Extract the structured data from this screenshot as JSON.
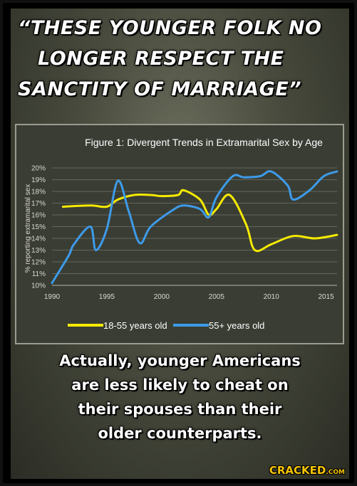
{
  "headline": {
    "lines": [
      "“THESE YOUNGER FOLK NO",
      "LONGER RESPECT THE",
      "SANCTITY OF MARRIAGE”"
    ]
  },
  "caption": {
    "lines": [
      "Actually, younger Americans",
      "are less likely to cheat on",
      "their spouses than their",
      "older counterparts."
    ]
  },
  "logo": {
    "main": "CRACKED",
    "suffix": ".COM"
  },
  "colors": {
    "young": "#f5ea00",
    "old": "#3d9be9"
  },
  "chart_data": {
    "type": "line",
    "title": "Figure 1: Divergent Trends in Extramarital Sex by Age",
    "xlabel": "",
    "ylabel": "% reporting extramarital sex",
    "xlim": [
      1990,
      2016
    ],
    "ylim": [
      10,
      20
    ],
    "x_ticks": [
      "1990",
      "1995",
      "2000",
      "2005",
      "2010",
      "2015"
    ],
    "y_ticks": [
      "20%",
      "19%",
      "18%",
      "17%",
      "16%",
      "15%",
      "14%",
      "13%",
      "12%",
      "11%",
      "10%"
    ],
    "legend_position": "bottom",
    "series": [
      {
        "name": "18-55 years old",
        "color": "#f5ea00",
        "x": [
          1991,
          1993.5,
          1995,
          1996,
          1997.5,
          1999,
          2000,
          2001.5,
          2002,
          2003.5,
          2004.3,
          2005,
          2006.2,
          2007.7,
          2008.5,
          2010,
          2012,
          2014,
          2016
        ],
        "y": [
          16.7,
          16.8,
          16.7,
          17.3,
          17.7,
          17.7,
          17.6,
          17.7,
          18.1,
          17.3,
          16.0,
          16.5,
          17.7,
          15.2,
          13.0,
          13.5,
          14.2,
          14.0,
          14.3
        ]
      },
      {
        "name": "55+ years old",
        "color": "#3d9be9",
        "x": [
          1990,
          1991.5,
          1992,
          1993.5,
          1994,
          1995,
          1996,
          1997,
          1998,
          1999,
          2001,
          2002,
          2003.5,
          2004.3,
          2005,
          2006.5,
          2007.5,
          2009,
          2010,
          2011.5,
          2012,
          2013.5,
          2014.8,
          2016
        ],
        "y": [
          10.2,
          12.5,
          13.5,
          15.0,
          13.0,
          14.8,
          18.9,
          16.3,
          13.6,
          15.0,
          16.4,
          16.8,
          16.5,
          15.8,
          17.5,
          19.3,
          19.2,
          19.3,
          19.7,
          18.5,
          17.3,
          18.1,
          19.3,
          19.7
        ]
      }
    ]
  }
}
